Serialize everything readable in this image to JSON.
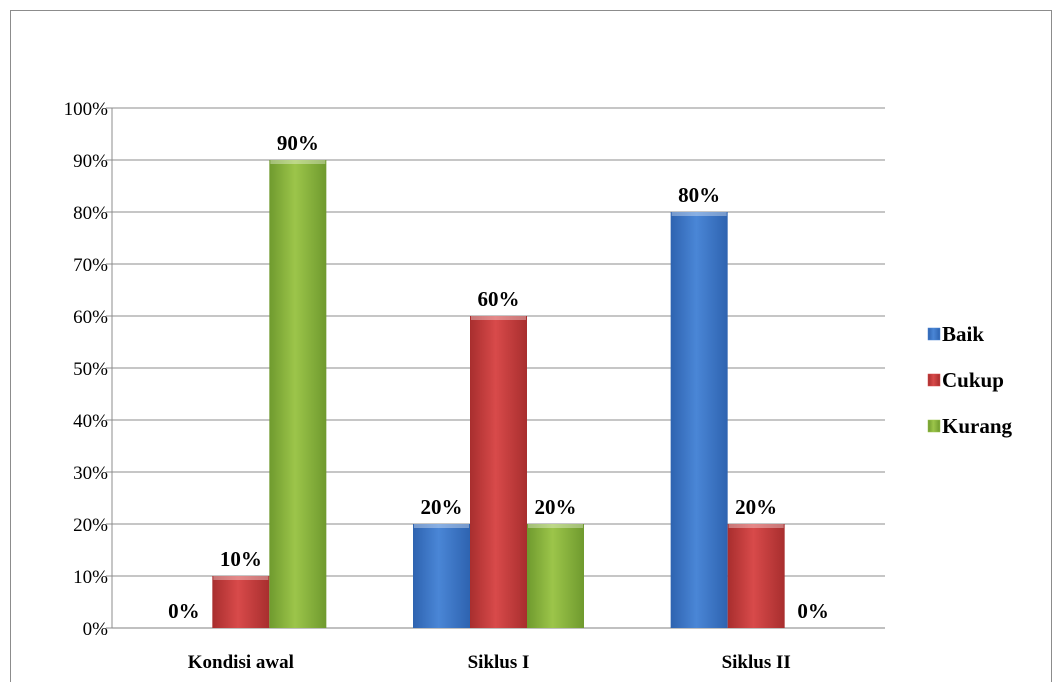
{
  "chart_data": {
    "type": "bar",
    "categories": [
      "Kondisi awal",
      "Siklus I",
      "Siklus II"
    ],
    "series": [
      {
        "name": "Baik",
        "values": [
          0,
          20,
          80
        ],
        "color": "#4a86d6"
      },
      {
        "name": "Cukup",
        "values": [
          10,
          60,
          20
        ],
        "color": "#d84a4a"
      },
      {
        "name": "Kurang",
        "values": [
          90,
          20,
          0
        ],
        "color": "#9cc54a"
      }
    ],
    "data_labels": [
      [
        "0%",
        "20%",
        "80%"
      ],
      [
        "10%",
        "60%",
        "20%"
      ],
      [
        "90%",
        "20%",
        "0%"
      ]
    ],
    "yticks": [
      "0%",
      "10%",
      "20%",
      "30%",
      "40%",
      "50%",
      "60%",
      "70%",
      "80%",
      "90%",
      "100%"
    ],
    "ylim": [
      0,
      100
    ],
    "grid": true,
    "legend_position": "right",
    "title": "",
    "xlabel": "",
    "ylabel": ""
  }
}
